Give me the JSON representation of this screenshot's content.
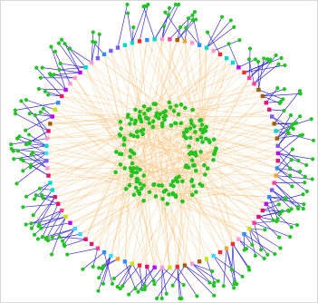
{
  "diagram": {
    "type": "radial-network",
    "inner_node_count": 180,
    "outer_node_count": 96,
    "leaf_node_count": 230,
    "colors": {
      "background": "#ffffff",
      "edge_core": "#f5c27a",
      "edge_leaf": "#3a2fd0",
      "node_inner": "#22c422",
      "node_leaf": "#22c422",
      "ring_palette": [
        "#e8116b",
        "#ff3fa0",
        "#c000ff",
        "#7a5cff",
        "#3bd8ff",
        "#2f8dff",
        "#f2a531",
        "#c9e400",
        "#ff2b2b",
        "#ff9ad3",
        "#00d9c8",
        "#a45a00"
      ]
    }
  }
}
